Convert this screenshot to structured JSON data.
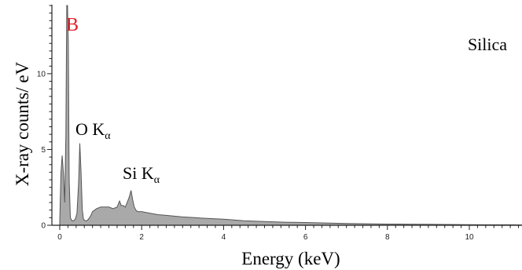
{
  "chart_data": {
    "type": "area",
    "title": "",
    "xlabel": "Energy (keV)",
    "ylabel": "X-ray counts/ eV",
    "xlim": [
      -0.2,
      11.3
    ],
    "ylim": [
      0,
      14.5
    ],
    "x_ticks": [
      0,
      2,
      4,
      6,
      8,
      10
    ],
    "y_ticks": [
      0,
      5,
      10
    ],
    "sample_label": "Silica",
    "fill_color": "#a9a9a9",
    "stroke_color": "#555555",
    "peak_annotations": [
      {
        "label": "B",
        "subscript": "",
        "x": 0.18,
        "color": "#e0202a"
      },
      {
        "label": "O K",
        "subscript": "α",
        "x": 0.52,
        "color": "#000000"
      },
      {
        "label": "Si K",
        "subscript": "α",
        "x": 1.74,
        "color": "#000000"
      }
    ],
    "series": [
      {
        "x": [
          0.0,
          0.03,
          0.06,
          0.09,
          0.12,
          0.15,
          0.17,
          0.19,
          0.21,
          0.23,
          0.26,
          0.3,
          0.34,
          0.38,
          0.42,
          0.46,
          0.49,
          0.52,
          0.55,
          0.58,
          0.62,
          0.66,
          0.7,
          0.75,
          0.8,
          0.9,
          1.0,
          1.1,
          1.2,
          1.3,
          1.4,
          1.46,
          1.5,
          1.55,
          1.6,
          1.66,
          1.7,
          1.74,
          1.78,
          1.82,
          1.86,
          1.9,
          2.0,
          2.2,
          2.4,
          2.6,
          2.8,
          3.0,
          3.3,
          3.6,
          4.0,
          4.5,
          5.0,
          5.5,
          6.0,
          6.5,
          7.0,
          7.5,
          8.0,
          8.5,
          9.0,
          9.5,
          10.0,
          10.5,
          11.0,
          11.3
        ],
        "y": [
          0.3,
          3.5,
          4.6,
          3.4,
          1.5,
          6.0,
          14.5,
          14.5,
          12.0,
          3.0,
          0.5,
          0.3,
          0.3,
          0.4,
          0.8,
          2.8,
          5.4,
          3.5,
          1.0,
          0.4,
          0.3,
          0.3,
          0.4,
          0.6,
          0.9,
          1.1,
          1.2,
          1.2,
          1.2,
          1.1,
          1.2,
          1.6,
          1.3,
          1.3,
          1.2,
          1.6,
          1.9,
          2.3,
          1.7,
          1.2,
          1.0,
          0.9,
          0.9,
          0.8,
          0.7,
          0.65,
          0.6,
          0.55,
          0.5,
          0.45,
          0.4,
          0.3,
          0.25,
          0.2,
          0.18,
          0.15,
          0.12,
          0.1,
          0.08,
          0.07,
          0.06,
          0.05,
          0.04,
          0.03,
          0.03,
          0.02
        ]
      }
    ]
  }
}
